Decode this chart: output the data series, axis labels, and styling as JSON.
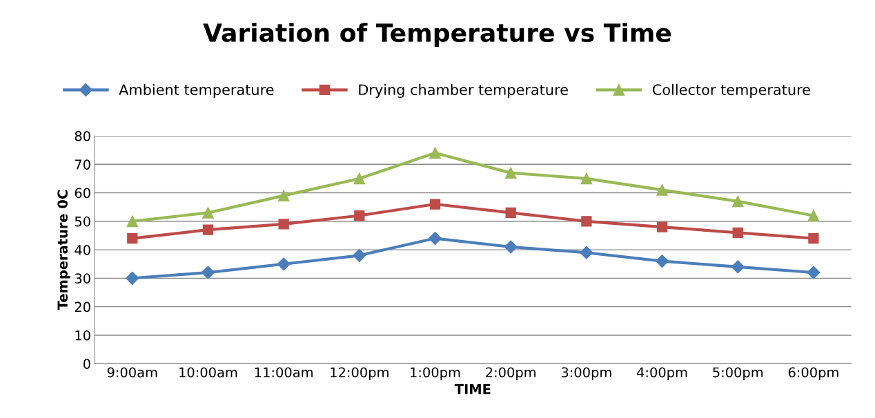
{
  "chart_data": {
    "type": "line",
    "title": "Variation of Temperature vs Time",
    "xlabel": "TIME",
    "ylabel": "Temperature 0C",
    "categories": [
      "9:00am",
      "10:00am",
      "11:00am",
      "12:00pm",
      "1:00pm",
      "2:00pm",
      "3:00pm",
      "4:00pm",
      "5:00pm",
      "6:00pm"
    ],
    "series": [
      {
        "name": "Ambient temperature",
        "color": "#4a7ebb",
        "marker": "diamond",
        "values": [
          30,
          32,
          35,
          38,
          44,
          41,
          39,
          36,
          34,
          32
        ]
      },
      {
        "name": "Drying chamber temperature",
        "color": "#be4b48",
        "marker": "square",
        "values": [
          44,
          47,
          49,
          52,
          56,
          53,
          50,
          48,
          46,
          44
        ]
      },
      {
        "name": "Collector temperature",
        "color": "#98b954",
        "marker": "triangle",
        "values": [
          50,
          53,
          59,
          65,
          74,
          67,
          65,
          61,
          57,
          52
        ]
      }
    ],
    "ylim": [
      0,
      80
    ],
    "yticks": [
      0,
      10,
      20,
      30,
      40,
      50,
      60,
      70,
      80
    ],
    "grid": "y",
    "legend": "top"
  }
}
